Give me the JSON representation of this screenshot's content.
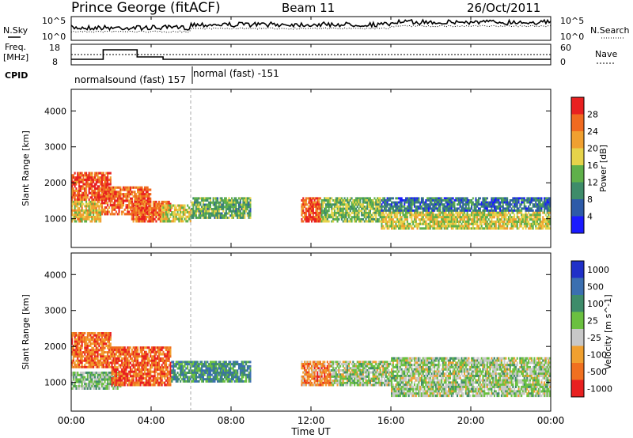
{
  "header": {
    "title": "Prince George (fitACF)",
    "beam": "Beam 11",
    "date": "26/Oct/2011"
  },
  "noise_panel": {
    "left_label": "N.Sky",
    "right_label": "N.Search",
    "left_ticks": [
      "10^5",
      "10^0"
    ],
    "right_ticks": [
      "10^5",
      "10^0"
    ]
  },
  "freq_panel": {
    "left_label": "Freq.",
    "left_unit": "[MHz]",
    "right_label": "Nave",
    "left_ticks": [
      "18",
      "8"
    ],
    "right_ticks": [
      "60",
      "0"
    ]
  },
  "cpid": {
    "label": "CPID",
    "modes": [
      {
        "name": "normalsound (fast) 157"
      },
      {
        "name": "normal (fast) -151"
      }
    ]
  },
  "chart_data": [
    {
      "type": "heatmap",
      "name": "power",
      "ylabel": "Slant Range [km]",
      "yticks": [
        "1000",
        "2000",
        "3000",
        "4000"
      ],
      "ylim": [
        200,
        4600
      ],
      "xlim": [
        0,
        24
      ],
      "colorbar_label": "Power [dB]",
      "colorbar_ticks": [
        "4",
        "8",
        "12",
        "16",
        "20",
        "24",
        "28"
      ],
      "colorbar_range": [
        0,
        32
      ],
      "colorbar_colors": [
        "#1a1aff",
        "#2d5aa8",
        "#3e8c6a",
        "#5fb04a",
        "#e6d34a",
        "#f0a030",
        "#f06a20",
        "#e82020"
      ],
      "regions": [
        {
          "t0": 0.0,
          "t1": 2.0,
          "r0": 1500,
          "r1": 2300,
          "level": 0.85
        },
        {
          "t0": 0.0,
          "t1": 1.5,
          "r0": 900,
          "r1": 1500,
          "level": 0.6
        },
        {
          "t0": 1.5,
          "t1": 4.0,
          "r0": 1100,
          "r1": 1900,
          "level": 0.8
        },
        {
          "t0": 3.0,
          "t1": 5.0,
          "r0": 900,
          "r1": 1500,
          "level": 0.85
        },
        {
          "t0": 4.5,
          "t1": 6.0,
          "r0": 900,
          "r1": 1400,
          "level": 0.55
        },
        {
          "t0": 6.0,
          "t1": 9.0,
          "r0": 1000,
          "r1": 1600,
          "level": 0.4
        },
        {
          "t0": 11.5,
          "t1": 12.5,
          "r0": 900,
          "r1": 1600,
          "level": 0.85
        },
        {
          "t0": 12.5,
          "t1": 15.5,
          "r0": 900,
          "r1": 1600,
          "level": 0.45
        },
        {
          "t0": 15.5,
          "t1": 24.0,
          "r0": 700,
          "r1": 1200,
          "level": 0.55
        },
        {
          "t0": 15.5,
          "t1": 24.0,
          "r0": 1200,
          "r1": 1600,
          "level": 0.25
        }
      ]
    },
    {
      "type": "heatmap",
      "name": "velocity",
      "ylabel": "Slant Range [km]",
      "yticks": [
        "1000",
        "2000",
        "3000",
        "4000"
      ],
      "ylim": [
        200,
        4600
      ],
      "xlim": [
        0,
        24
      ],
      "colorbar_label": "Velocity [m s^-1]",
      "colorbar_ticks": [
        "1000",
        "500",
        "100",
        "25",
        "-25",
        "-100",
        "-500",
        "-1000"
      ],
      "colorbar_colors": [
        "#2030c8",
        "#3b6fb0",
        "#3e8c6a",
        "#6bc040",
        "#c8c8c8",
        "#f0a030",
        "#f07020",
        "#e82020"
      ],
      "regions": [
        {
          "t0": 0.0,
          "t1": 2.0,
          "r0": 1400,
          "r1": 2400,
          "level": 0.8
        },
        {
          "t0": 0.0,
          "t1": 2.5,
          "r0": 800,
          "r1": 1300,
          "level": 0.45
        },
        {
          "t0": 2.0,
          "t1": 5.0,
          "r0": 900,
          "r1": 2000,
          "level": 0.85
        },
        {
          "t0": 5.0,
          "t1": 9.0,
          "r0": 1000,
          "r1": 1600,
          "level": 0.3
        },
        {
          "t0": 11.5,
          "t1": 13.0,
          "r0": 900,
          "r1": 1600,
          "level": 0.75
        },
        {
          "t0": 13.0,
          "t1": 16.0,
          "r0": 900,
          "r1": 1600,
          "level": 0.5
        },
        {
          "t0": 16.0,
          "t1": 24.0,
          "r0": 600,
          "r1": 1700,
          "level": 0.5
        }
      ]
    }
  ],
  "time_axis": {
    "xlabel": "Time UT",
    "ticks": [
      "00:00",
      "04:00",
      "08:00",
      "12:00",
      "16:00",
      "20:00",
      "00:00"
    ]
  }
}
